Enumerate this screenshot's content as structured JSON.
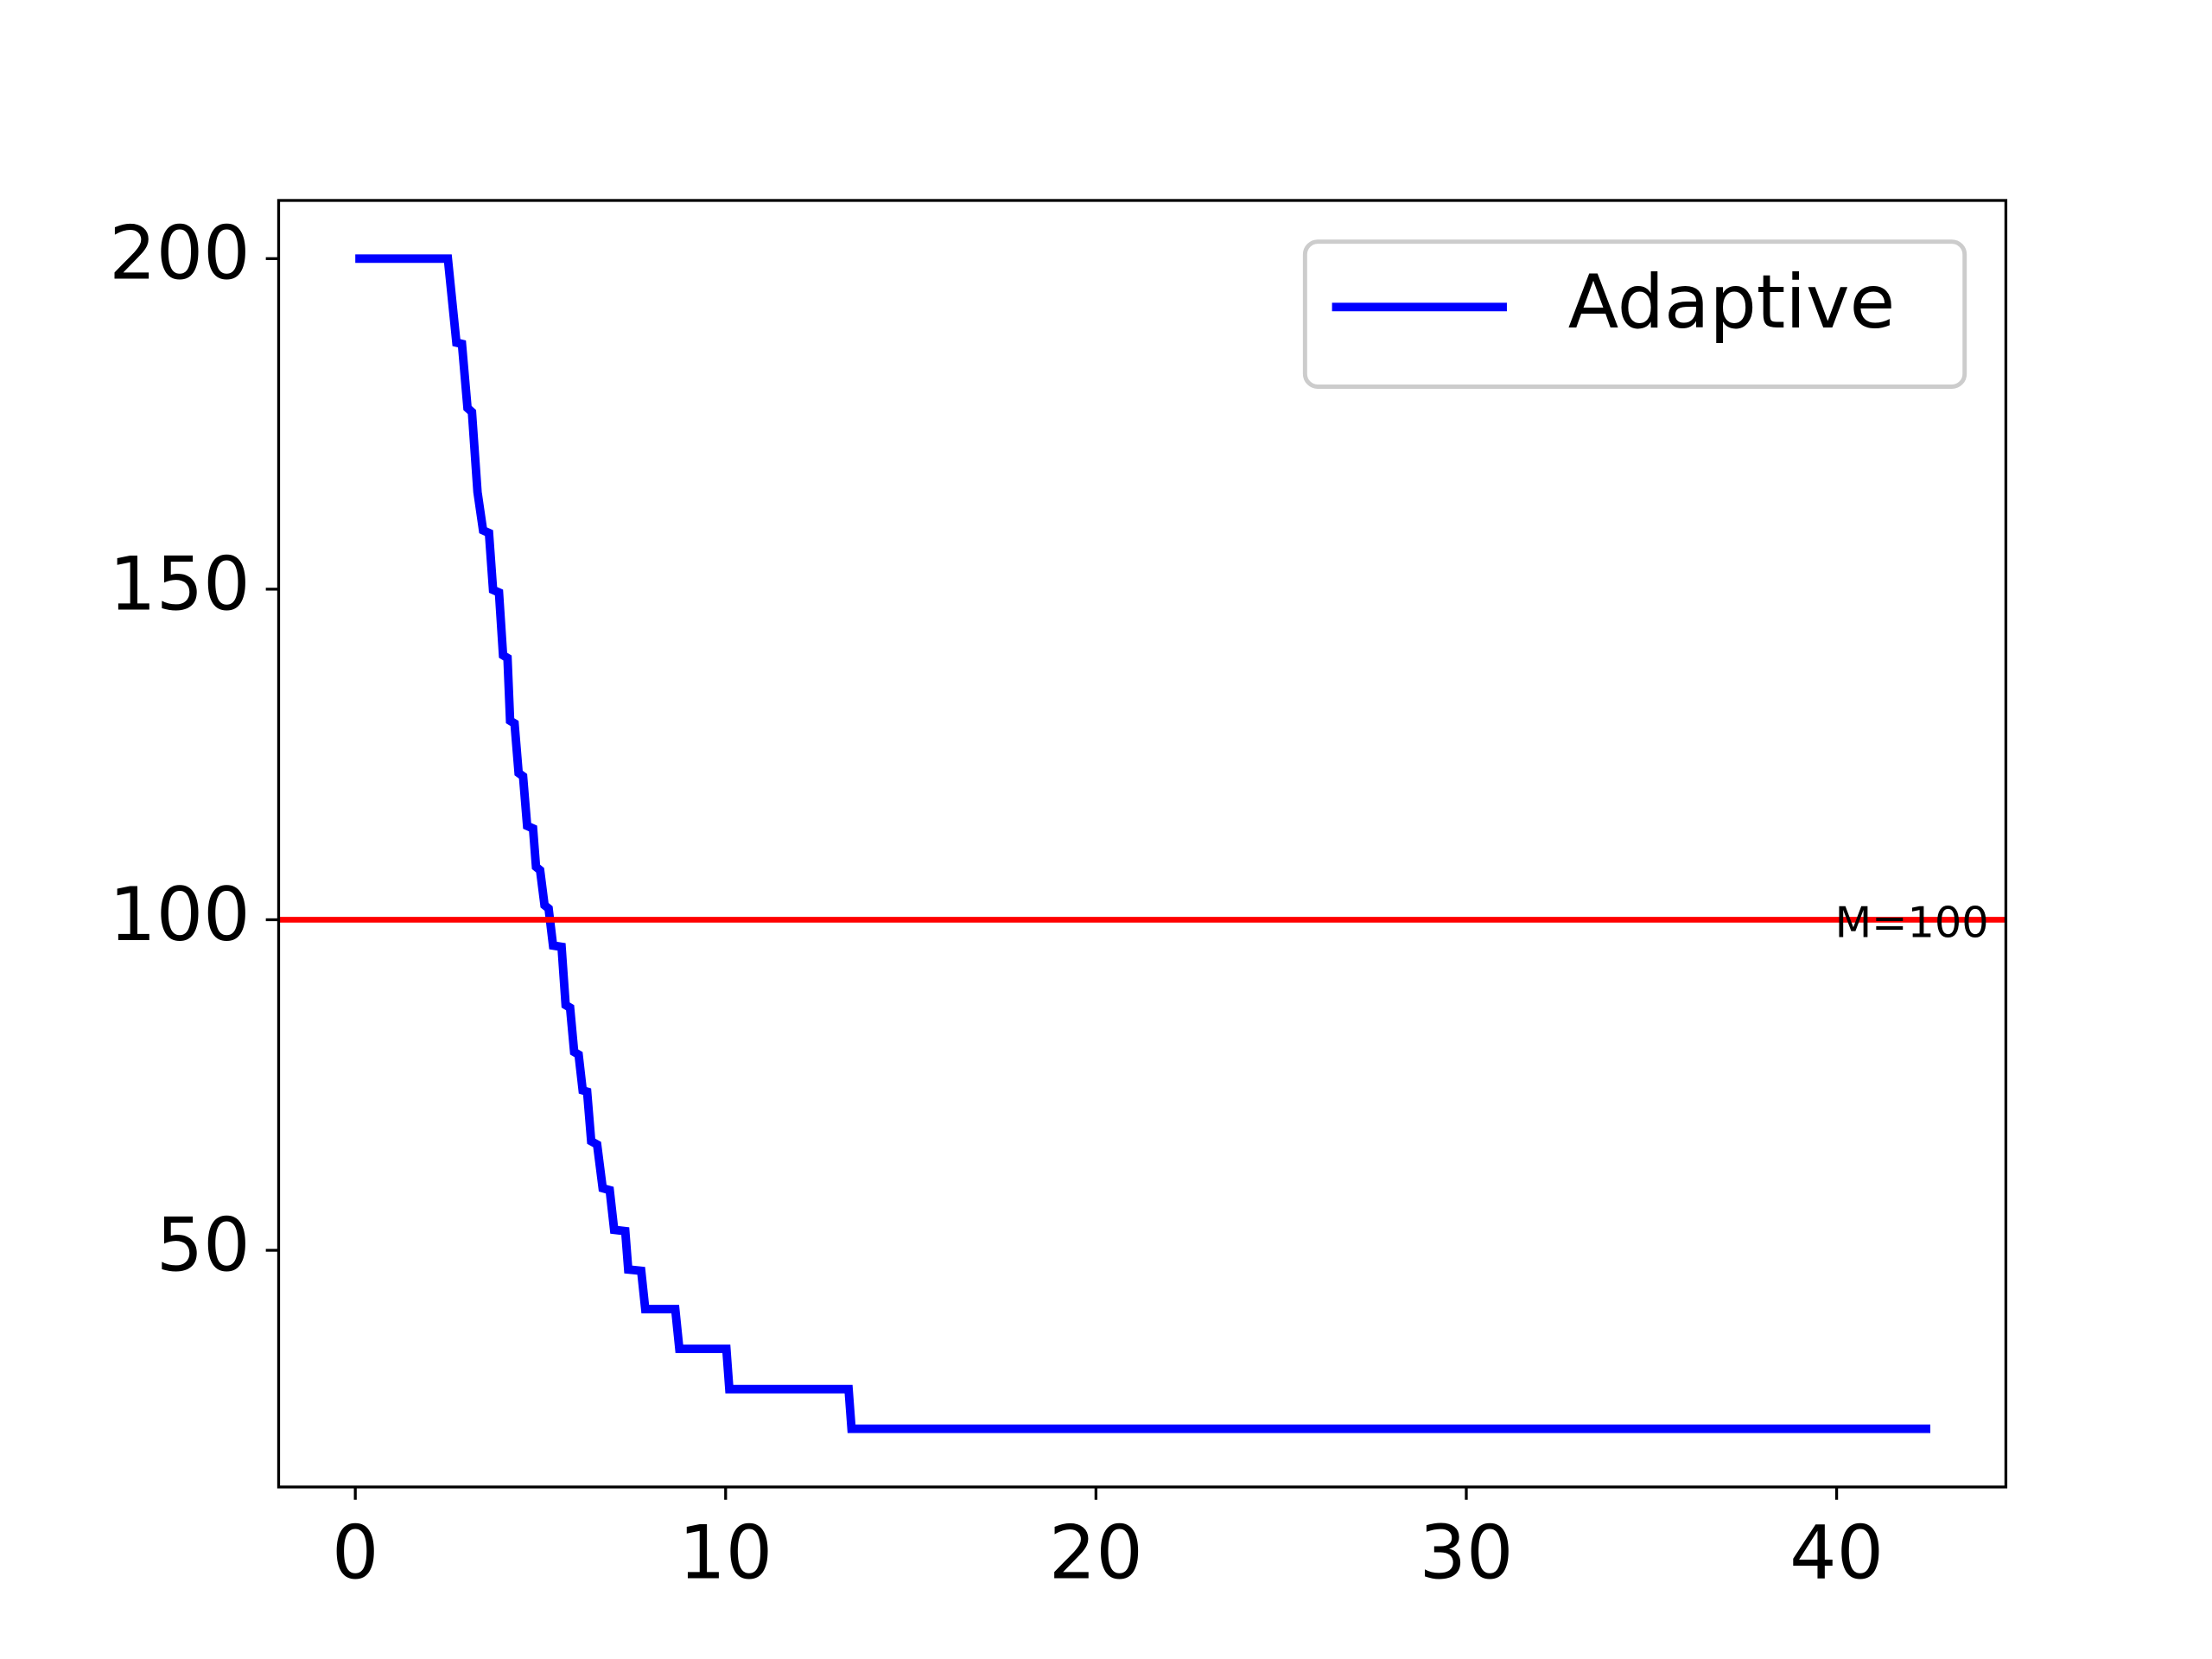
{
  "chart_data": {
    "type": "line",
    "x": [
      0,
      2.5,
      2.73,
      2.88,
      3.03,
      3.15,
      3.3,
      3.45,
      3.61,
      3.72,
      3.88,
      3.99,
      4.11,
      4.18,
      4.3,
      4.41,
      4.53,
      4.64,
      4.8,
      4.88,
      4.99,
      5.11,
      5.22,
      5.34,
      5.57,
      5.68,
      5.8,
      5.91,
      6.03,
      6.14,
      6.26,
      6.37,
      6.53,
      6.68,
      6.87,
      6.99,
      7.29,
      7.37,
      7.72,
      7.83,
      8.64,
      8.75,
      10.02,
      10.1,
      13.32,
      13.4,
      42.53
    ],
    "series": [
      {
        "name": "Adaptive",
        "color": "#0000ff",
        "values": [
          200,
          200,
          187.3,
          187.1,
          177.4,
          176.8,
          164.7,
          158.9,
          158.5,
          149.9,
          149.5,
          140.0,
          139.6,
          130.1,
          129.7,
          122.2,
          121.7,
          114.2,
          113.8,
          108.0,
          107.5,
          102.2,
          101.7,
          96.1,
          95.9,
          87.1,
          86.7,
          80.0,
          79.6,
          74.2,
          74.0,
          66.5,
          66.0,
          59.4,
          59.1,
          53.1,
          52.9,
          47.1,
          46.9,
          41.1,
          41.1,
          35.1,
          35.1,
          29.0,
          29.0,
          23.0,
          23.0
        ]
      }
    ],
    "hline": {
      "value": 100,
      "color": "#ff0000",
      "label": "M=100"
    },
    "xlim": [
      -2.07,
      44.57
    ],
    "ylim": [
      14.2,
      208.8
    ],
    "xticks": [
      0,
      10,
      20,
      30,
      40
    ],
    "yticks": [
      50,
      100,
      150,
      200
    ],
    "grid": false,
    "legend": "upper-right"
  }
}
